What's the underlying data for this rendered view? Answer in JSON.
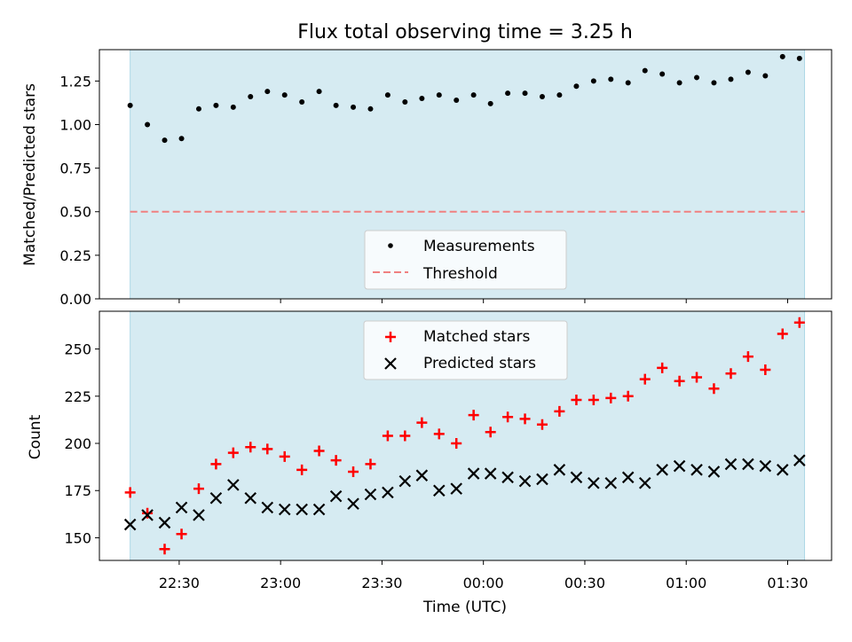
{
  "chart_data": [
    {
      "type": "scatter",
      "title": "Flux total observing time = 3.25 h",
      "xlabel": "",
      "ylabel": "Matched/Predicted stars",
      "ylim": [
        0,
        1.43
      ],
      "yticks": [
        0.0,
        0.25,
        0.5,
        0.75,
        1.0,
        1.25
      ],
      "ytick_labels": [
        "0.00",
        "0.25",
        "0.50",
        "0.75",
        "1.00",
        "1.25"
      ],
      "xlim_minutes": [
        -113.6,
        103.0
      ],
      "shaded_span_minutes": [
        -104.5,
        95.0
      ],
      "shade_color": "#add8e6",
      "grid": false,
      "legend_position": "lower center",
      "legend": [
        {
          "name": "Measurements",
          "marker": "dot",
          "color": "#000000"
        },
        {
          "name": "Threshold",
          "marker": "dashed-line",
          "color": "#f08080"
        }
      ],
      "threshold": 0.5,
      "x_minutes": [
        -104.5,
        -99.4,
        -94.3,
        -89.3,
        -84.2,
        -79.1,
        -74.0,
        -68.9,
        -63.9,
        -58.8,
        -53.7,
        -48.6,
        -43.6,
        -38.5,
        -33.4,
        -28.3,
        -23.2,
        -18.2,
        -13.1,
        -8.0,
        -2.9,
        2.1,
        7.2,
        12.3,
        17.4,
        22.5,
        27.5,
        32.6,
        37.7,
        42.8,
        47.8,
        52.9,
        58.0,
        63.1,
        68.2,
        73.2,
        78.3,
        83.4,
        88.5,
        93.5
      ],
      "series": [
        {
          "name": "Measurements",
          "values": [
            1.11,
            1.0,
            0.91,
            0.92,
            1.09,
            1.11,
            1.1,
            1.16,
            1.19,
            1.17,
            1.13,
            1.19,
            1.11,
            1.1,
            1.09,
            1.17,
            1.13,
            1.15,
            1.17,
            1.14,
            1.17,
            1.12,
            1.18,
            1.18,
            1.16,
            1.17,
            1.22,
            1.25,
            1.26,
            1.24,
            1.31,
            1.29,
            1.24,
            1.27,
            1.24,
            1.26,
            1.3,
            1.28,
            1.39,
            1.38
          ]
        }
      ]
    },
    {
      "type": "scatter",
      "title": "",
      "xlabel": "Time (UTC)",
      "ylabel": "Count",
      "ylim": [
        138,
        270
      ],
      "yticks": [
        150,
        175,
        200,
        225,
        250
      ],
      "ytick_labels": [
        "150",
        "175",
        "200",
        "225",
        "250"
      ],
      "xlim_minutes": [
        -113.6,
        103.0
      ],
      "xticks_minutes": [
        -90,
        -60,
        -30,
        0,
        30,
        60,
        90
      ],
      "xtick_labels": [
        "22:30",
        "23:00",
        "23:30",
        "00:00",
        "00:30",
        "01:00",
        "01:30"
      ],
      "shaded_span_minutes": [
        -104.5,
        95.0
      ],
      "shade_color": "#add8e6",
      "grid": false,
      "legend_position": "upper center",
      "x_minutes": [
        -104.5,
        -99.4,
        -94.3,
        -89.3,
        -84.2,
        -79.1,
        -74.0,
        -68.9,
        -63.9,
        -58.8,
        -53.7,
        -48.6,
        -43.6,
        -38.5,
        -33.4,
        -28.3,
        -23.2,
        -18.2,
        -13.1,
        -8.0,
        -2.9,
        2.1,
        7.2,
        12.3,
        17.4,
        22.5,
        27.5,
        32.6,
        37.7,
        42.8,
        47.8,
        52.9,
        58.0,
        63.1,
        68.2,
        73.2,
        78.3,
        83.4,
        88.5,
        93.5
      ],
      "series": [
        {
          "name": "Matched stars",
          "marker": "plus",
          "color": "#ff0000",
          "values": [
            174,
            163,
            144,
            152,
            176,
            189,
            195,
            198,
            197,
            193,
            186,
            196,
            191,
            185,
            189,
            204,
            204,
            211,
            205,
            200,
            215,
            206,
            214,
            213,
            210,
            217,
            223,
            223,
            224,
            225,
            234,
            240,
            233,
            235,
            229,
            237,
            246,
            239,
            258,
            264
          ]
        },
        {
          "name": "Predicted stars",
          "marker": "x",
          "color": "#000000",
          "values": [
            157,
            162,
            158,
            166,
            162,
            171,
            178,
            171,
            166,
            165,
            165,
            165,
            172,
            168,
            173,
            174,
            180,
            183,
            175,
            176,
            184,
            184,
            182,
            180,
            181,
            186,
            182,
            179,
            179,
            182,
            179,
            186,
            188,
            186,
            185,
            189,
            189,
            188,
            186,
            191
          ]
        }
      ]
    }
  ]
}
